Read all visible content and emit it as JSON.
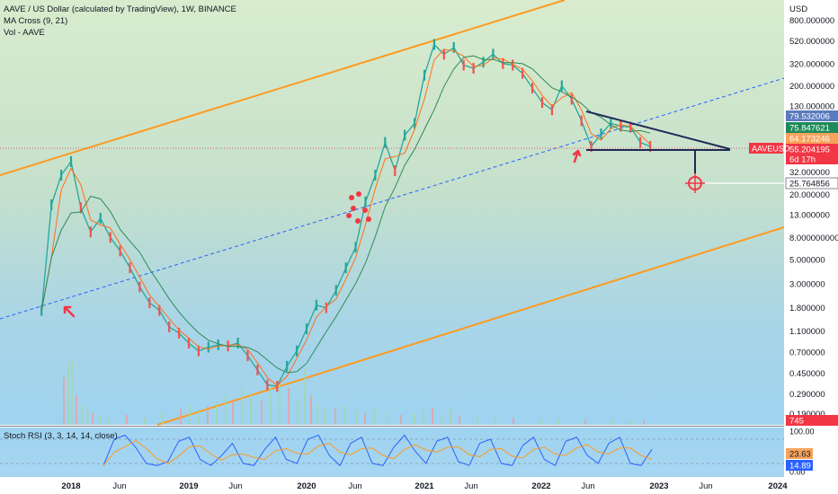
{
  "header": {
    "title": "AAVE / US Dollar (calculated by TradingView), 1W, BINANCE",
    "ma_label": "MA Cross (9, 21)",
    "vol_label": "Vol - AAVE"
  },
  "price_axis": {
    "currency": "USD",
    "ticks": [
      "800.000000",
      "520.000000",
      "320.000000",
      "200.000000",
      "130.000000",
      "80.000000",
      "32.000000",
      "20.000000",
      "13.000000",
      "8.000000000",
      "5.000000",
      "3.000000",
      "1.800000",
      "1.100000",
      "0.700000",
      "0.450000",
      "0.290000",
      "0.190000"
    ]
  },
  "price_tags": [
    {
      "text": "79.532006",
      "color": "#5b7bbf"
    },
    {
      "text": "75.847621",
      "color": "#1e8a5a"
    },
    {
      "text": "64.173246",
      "color": "#f7a35c"
    },
    {
      "text": "55.204195",
      "color": "#f23645"
    },
    {
      "text": "6d 17h",
      "color": "#f23645"
    },
    {
      "text": "25.764856",
      "color": "#ffffff"
    },
    {
      "text": "745",
      "color": "#f23645"
    }
  ],
  "symbol_tag": "AAVEUSD",
  "time_axis": [
    "2018",
    "Jun",
    "2019",
    "Jun",
    "2020",
    "Jun",
    "2021",
    "Jun",
    "2022",
    "Jun",
    "2023",
    "Jun",
    "2024"
  ],
  "oscillator": {
    "label": "Stoch RSI (3, 3, 14, 14, close)",
    "ticks": [
      "100.00",
      "50.00",
      "0.00"
    ],
    "tags": [
      {
        "text": "23.63",
        "color": "#f7a35c"
      },
      {
        "text": "14.89",
        "color": "#2962ff"
      }
    ]
  },
  "chart_data": {
    "type": "line",
    "title": "AAVE / US Dollar (calculated by TradingView), 1W, BINANCE",
    "scale": "log",
    "ylim": [
      0.15,
      1100
    ],
    "series": [
      {
        "name": "AAVEUSD",
        "points": [
          [
            "2017-10",
            1.7
          ],
          [
            "2017-11",
            16
          ],
          [
            "2017-12",
            30
          ],
          [
            "2018-01",
            40
          ],
          [
            "2018-02",
            15
          ],
          [
            "2018-03",
            9
          ],
          [
            "2018-04",
            12
          ],
          [
            "2018-05",
            8
          ],
          [
            "2018-06",
            6
          ],
          [
            "2018-07",
            4.2
          ],
          [
            "2018-08",
            2.8
          ],
          [
            "2018-09",
            2.0
          ],
          [
            "2018-10",
            1.7
          ],
          [
            "2018-11",
            1.2
          ],
          [
            "2018-12",
            1.05
          ],
          [
            "2019-01",
            0.85
          ],
          [
            "2019-02",
            0.72
          ],
          [
            "2019-03",
            0.78
          ],
          [
            "2019-04",
            0.82
          ],
          [
            "2019-05",
            0.8
          ],
          [
            "2019-06",
            0.85
          ],
          [
            "2019-07",
            0.65
          ],
          [
            "2019-08",
            0.48
          ],
          [
            "2019-09",
            0.35
          ],
          [
            "2019-10",
            0.34
          ],
          [
            "2019-11",
            0.52
          ],
          [
            "2019-12",
            0.72
          ],
          [
            "2020-01",
            1.15
          ],
          [
            "2020-02",
            1.9
          ],
          [
            "2020-03",
            1.8
          ],
          [
            "2020-04",
            2.6
          ],
          [
            "2020-05",
            4.2
          ],
          [
            "2020-06",
            6.5
          ],
          [
            "2020-07",
            17
          ],
          [
            "2020-08",
            30
          ],
          [
            "2020-09",
            60
          ],
          [
            "2020-10",
            33
          ],
          [
            "2020-11",
            70
          ],
          [
            "2020-12",
            90
          ],
          [
            "2021-01",
            250
          ],
          [
            "2021-02",
            480
          ],
          [
            "2021-03",
            390
          ],
          [
            "2021-04",
            450
          ],
          [
            "2021-05",
            310
          ],
          [
            "2021-06",
            290
          ],
          [
            "2021-07",
            330
          ],
          [
            "2021-08",
            390
          ],
          [
            "2021-09",
            320
          ],
          [
            "2021-10",
            310
          ],
          [
            "2021-11",
            260
          ],
          [
            "2021-12",
            190
          ],
          [
            "2022-01",
            140
          ],
          [
            "2022-02",
            120
          ],
          [
            "2022-03",
            200
          ],
          [
            "2022-04",
            150
          ],
          [
            "2022-05",
            95
          ],
          [
            "2022-06",
            55
          ],
          [
            "2022-07",
            72
          ],
          [
            "2022-08",
            90
          ],
          [
            "2022-09",
            85
          ],
          [
            "2022-10",
            83
          ],
          [
            "2022-11",
            60
          ],
          [
            "2022-12",
            55.2
          ]
        ]
      }
    ],
    "indicators": [
      "MA Cross (9, 21)",
      "Vol - AAVE",
      "Stoch RSI (3, 3, 14, 14, close)"
    ]
  }
}
